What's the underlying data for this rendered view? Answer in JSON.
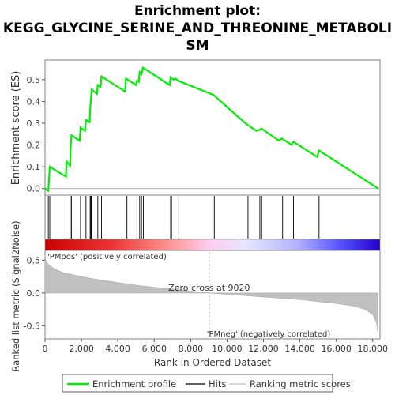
{
  "chart_data": {
    "type": "line",
    "title_lines": [
      "Enrichment plot:",
      "KEGG_GLYCINE_SERINE_AND_THREONINE_METABOLI",
      "SM"
    ],
    "es_panel": {
      "ylabel": "Enrichment score (ES)",
      "xlim": [
        0,
        18400
      ],
      "ylim": [
        -0.03,
        0.59
      ],
      "yticks": [
        0.0,
        0.1,
        0.2,
        0.3,
        0.4,
        0.5
      ],
      "ytick_labels": [
        "0.0",
        "0.1",
        "0.2",
        "0.3",
        "0.4",
        "0.5"
      ],
      "series_name": "Enrichment profile",
      "color": "#00ff00",
      "points": [
        [
          0,
          0
        ],
        [
          180,
          -0.01
        ],
        [
          260,
          0.1
        ],
        [
          1150,
          0.055
        ],
        [
          1180,
          0.125
        ],
        [
          1380,
          0.105
        ],
        [
          1400,
          0.18
        ],
        [
          1450,
          0.245
        ],
        [
          1900,
          0.22
        ],
        [
          1950,
          0.28
        ],
        [
          2200,
          0.265
        ],
        [
          2250,
          0.315
        ],
        [
          2450,
          0.305
        ],
        [
          2480,
          0.36
        ],
        [
          2520,
          0.41
        ],
        [
          2560,
          0.455
        ],
        [
          2850,
          0.435
        ],
        [
          2900,
          0.475
        ],
        [
          3050,
          0.465
        ],
        [
          3100,
          0.515
        ],
        [
          4400,
          0.445
        ],
        [
          4450,
          0.505
        ],
        [
          5000,
          0.475
        ],
        [
          5050,
          0.495
        ],
        [
          5150,
          0.49
        ],
        [
          5200,
          0.535
        ],
        [
          5300,
          0.525
        ],
        [
          5380,
          0.555
        ],
        [
          6850,
          0.475
        ],
        [
          6900,
          0.51
        ],
        [
          7050,
          0.5
        ],
        [
          7150,
          0.505
        ],
        [
          7250,
          0.5
        ],
        [
          7300,
          0.495
        ],
        [
          9250,
          0.43
        ],
        [
          11000,
          0.3
        ],
        [
          11600,
          0.265
        ],
        [
          11800,
          0.27
        ],
        [
          11900,
          0.275
        ],
        [
          12850,
          0.22
        ],
        [
          13000,
          0.23
        ],
        [
          13550,
          0.2
        ],
        [
          13650,
          0.215
        ],
        [
          14950,
          0.145
        ],
        [
          15050,
          0.175
        ],
        [
          18300,
          0.0
        ]
      ]
    },
    "hits_panel": {
      "hits": [
        180,
        260,
        1150,
        1380,
        1450,
        1950,
        2250,
        2480,
        2520,
        2560,
        2900,
        3100,
        4450,
        4500,
        5050,
        5200,
        5300,
        5400,
        6900,
        6950,
        7350,
        9300,
        11150,
        11800,
        11900,
        13050,
        13650,
        15050
      ]
    },
    "gradient_bar": {
      "stops": [
        {
          "offset": 0.0,
          "color": "#cc0000"
        },
        {
          "offset": 0.2,
          "color": "#ee3333"
        },
        {
          "offset": 0.38,
          "color": "#ff9999"
        },
        {
          "offset": 0.49,
          "color": "#ffccee"
        },
        {
          "offset": 0.6,
          "color": "#e6e6ff"
        },
        {
          "offset": 0.75,
          "color": "#b3b3ff"
        },
        {
          "offset": 0.88,
          "color": "#5555ff"
        },
        {
          "offset": 1.0,
          "color": "#2200cc"
        }
      ]
    },
    "metric_panel": {
      "ylabel_lines": [
        "Ranked list metric (Signal2Noise)"
      ],
      "xlabel": "Rank in Ordered Dataset",
      "xlim": [
        0,
        18400
      ],
      "ylim": [
        -0.7,
        0.65
      ],
      "yticks": [
        0.5,
        0.0,
        -0.5
      ],
      "ytick_labels": [
        "0.5",
        "0.0",
        "-0.5"
      ],
      "xticks": [
        0,
        2000,
        4000,
        6000,
        8000,
        10000,
        12000,
        14000,
        16000,
        18000
      ],
      "xtick_labels": [
        "0",
        "2,000",
        "4,000",
        "6,000",
        "8,000",
        "10,000",
        "12,000",
        "14,000",
        "16,000",
        "18,000"
      ],
      "zero_cross": 9020,
      "zero_cross_label": "Zero cross at 9020",
      "pos_label": "'PMpos' (positively correlated)",
      "neg_label": "'PMneg' (negatively correlated)",
      "curve": [
        [
          0,
          0.58
        ],
        [
          50,
          0.49
        ],
        [
          200,
          0.43
        ],
        [
          500,
          0.37
        ],
        [
          1000,
          0.31
        ],
        [
          2000,
          0.25
        ],
        [
          3000,
          0.2
        ],
        [
          4000,
          0.16
        ],
        [
          5000,
          0.12
        ],
        [
          6000,
          0.09
        ],
        [
          7000,
          0.06
        ],
        [
          8000,
          0.03
        ],
        [
          9020,
          0.0
        ],
        [
          10000,
          -0.02
        ],
        [
          11000,
          -0.04
        ],
        [
          12000,
          -0.06
        ],
        [
          13000,
          -0.08
        ],
        [
          14000,
          -0.1
        ],
        [
          15000,
          -0.13
        ],
        [
          16000,
          -0.16
        ],
        [
          17000,
          -0.2
        ],
        [
          17600,
          -0.25
        ],
        [
          18000,
          -0.33
        ],
        [
          18200,
          -0.45
        ],
        [
          18300,
          -0.64
        ]
      ]
    },
    "legend": [
      {
        "label": "Enrichment profile",
        "color": "#00ff00"
      },
      {
        "label": "Hits",
        "color": "#000000"
      },
      {
        "label": "Ranking metric scores",
        "color": "#cccccc"
      }
    ]
  }
}
